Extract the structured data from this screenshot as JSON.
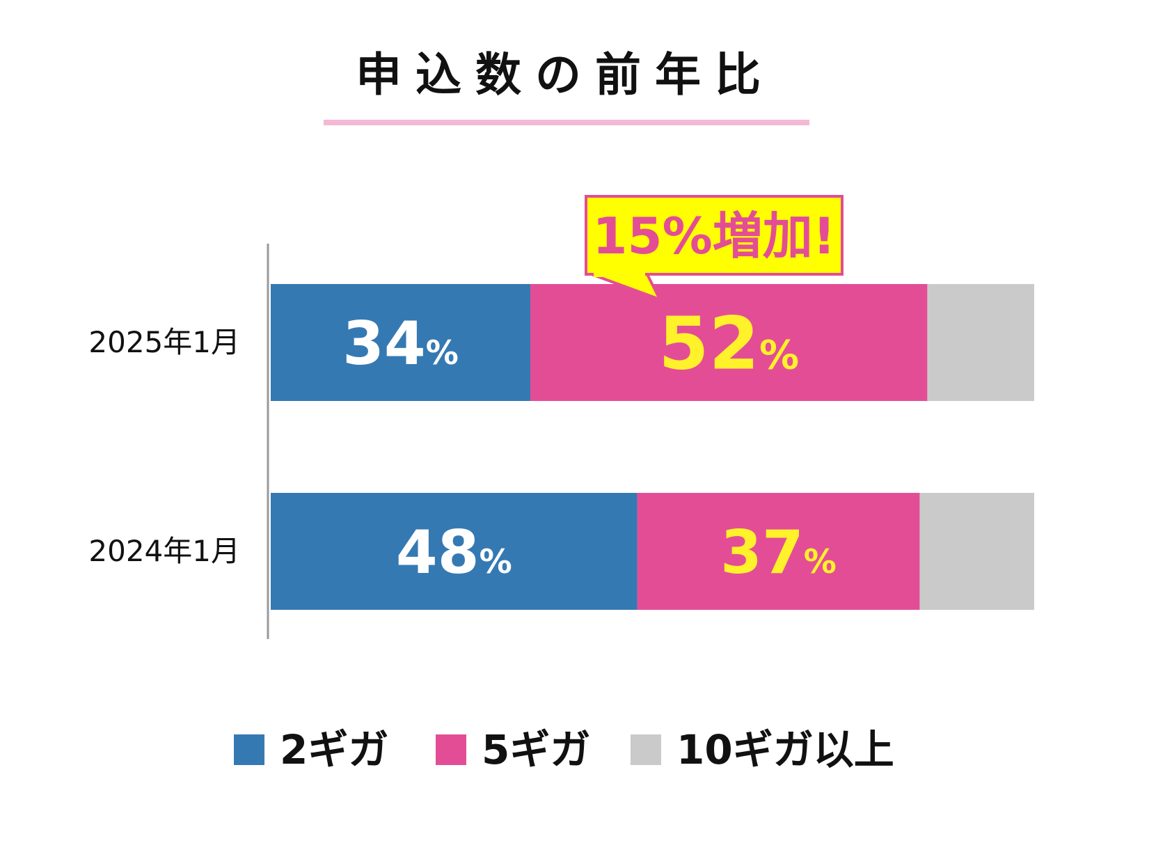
{
  "chart_data": {
    "type": "bar",
    "orientation": "horizontal",
    "stacked": true,
    "title": "申込数の前年比",
    "categories": [
      "2025年1月",
      "2024年1月"
    ],
    "series": [
      {
        "name": "2ギガ",
        "values": [
          34,
          48
        ],
        "labels": [
          "34%",
          "48%"
        ],
        "color": "#3579B3",
        "label_color": "#ffffff"
      },
      {
        "name": "5ギガ",
        "values": [
          52,
          37
        ],
        "labels": [
          "52%",
          "37%"
        ],
        "color": "#E34D96",
        "label_color": "#FFF22B"
      },
      {
        "name": "10ギガ以上",
        "values": [
          14,
          15
        ],
        "labels": [
          "",
          ""
        ],
        "color": "#CACACA",
        "label_color": "#ffffff"
      }
    ],
    "xlim": [
      0,
      100
    ],
    "grid": false,
    "legend_position": "bottom",
    "annotation": {
      "text": "15%増加!",
      "category": "2025年1月",
      "series": "5ギガ",
      "background": "#FFFF00",
      "border": "#E34D96",
      "text_color": "#E34D96"
    },
    "title_underline_color": "#F4B8D4",
    "axis_color": "#999999"
  }
}
